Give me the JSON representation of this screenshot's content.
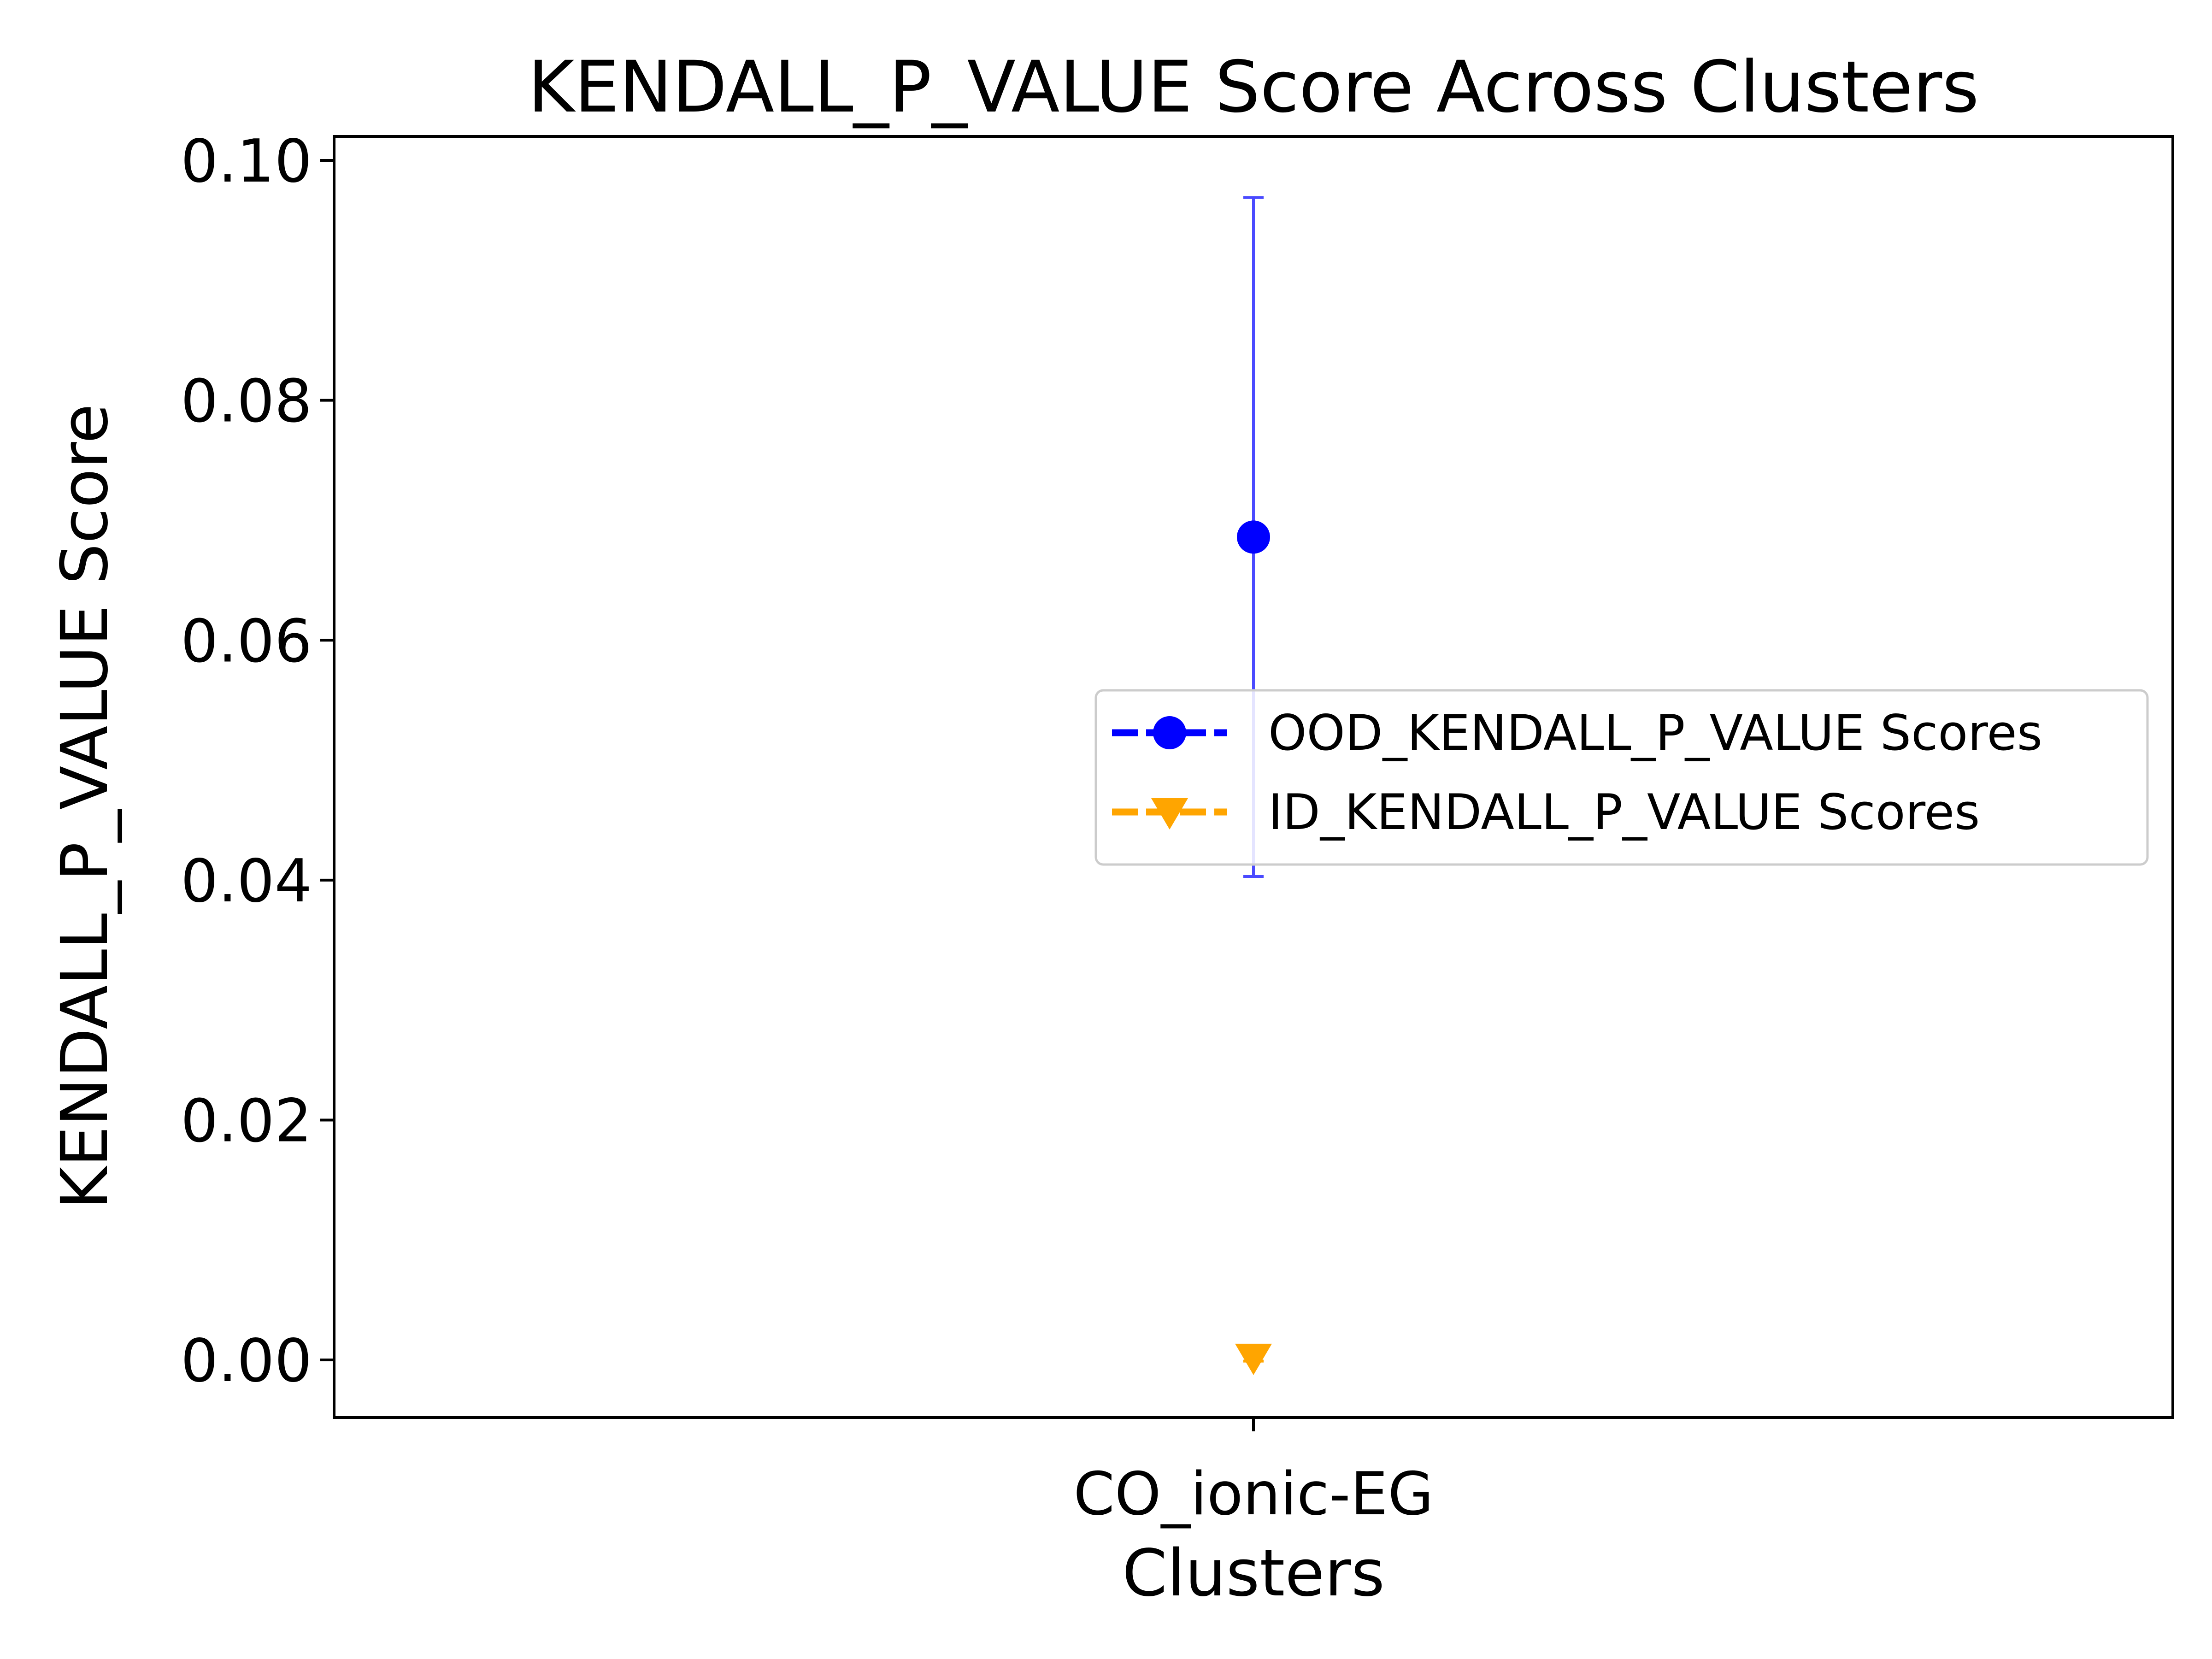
{
  "colors": {
    "ood": "#0000ff",
    "ood_errorbar": "#4a4aff",
    "id": "#ffa500",
    "axes": "#000000",
    "background": "#ffffff",
    "legend_border": "#cccccc"
  },
  "chart_data": {
    "type": "scatter",
    "title": "KENDALL_P_VALUE Score Across Clusters",
    "xlabel": "Clusters",
    "ylabel": "KENDALL_P_VALUE Score",
    "categories": [
      "CO_ionic-EG"
    ],
    "ylim": [
      -0.0048,
      0.102
    ],
    "yticks": [
      0.0,
      0.02,
      0.04,
      0.06,
      0.08,
      0.1
    ],
    "ytick_labels": [
      "0.00",
      "0.02",
      "0.04",
      "0.06",
      "0.08",
      "0.10"
    ],
    "grid": false,
    "legend_placement": "center-right",
    "series": [
      {
        "name": "OOD_KENDALL_P_VALUE Scores",
        "marker": "circle",
        "color": "#0000ff",
        "values": [
          0.0686
        ],
        "error": [
          0.0283
        ]
      },
      {
        "name": "ID_KENDALL_P_VALUE Scores",
        "marker": "triangle-down",
        "color": "#ffa500",
        "values": [
          0.0002
        ],
        "error": [
          0.0003
        ]
      }
    ]
  }
}
